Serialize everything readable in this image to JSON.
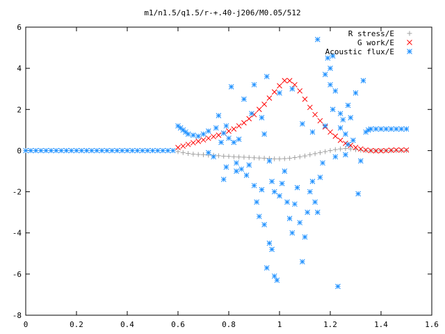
{
  "chart_data": {
    "type": "scatter",
    "title": "m1/n1.5/q1.5/r-+.40-j206/M0.05/512",
    "xlim": [
      0,
      1.6
    ],
    "ylim": [
      -8,
      6
    ],
    "xticks": [
      "0",
      "0.2",
      "0.4",
      "0.6",
      "0.8",
      "1",
      "1.2",
      "1.4",
      "1.6"
    ],
    "yticks": [
      "-8",
      "-6",
      "-4",
      "-2",
      "0",
      "2",
      "4",
      "6"
    ],
    "grid": false,
    "legend_position": "top-right",
    "series": [
      {
        "name": "R stress/E",
        "marker": "plus",
        "color": "#a0a0a0",
        "points": [
          [
            0.6,
            -0.05
          ],
          [
            0.62,
            -0.1
          ],
          [
            0.64,
            -0.14
          ],
          [
            0.66,
            -0.17
          ],
          [
            0.68,
            -0.19
          ],
          [
            0.7,
            -0.2
          ],
          [
            0.72,
            -0.22
          ],
          [
            0.74,
            -0.23
          ],
          [
            0.76,
            -0.25
          ],
          [
            0.78,
            -0.27
          ],
          [
            0.8,
            -0.28
          ],
          [
            0.82,
            -0.3
          ],
          [
            0.84,
            -0.31
          ],
          [
            0.86,
            -0.32
          ],
          [
            0.88,
            -0.33
          ],
          [
            0.9,
            -0.35
          ],
          [
            0.92,
            -0.36
          ],
          [
            0.94,
            -0.37
          ],
          [
            0.96,
            -0.38
          ],
          [
            0.98,
            -0.4
          ],
          [
            1.0,
            -0.4
          ],
          [
            1.02,
            -0.39
          ],
          [
            1.04,
            -0.37
          ],
          [
            1.06,
            -0.34
          ],
          [
            1.08,
            -0.3
          ],
          [
            1.1,
            -0.26
          ],
          [
            1.12,
            -0.2
          ],
          [
            1.14,
            -0.15
          ],
          [
            1.16,
            -0.1
          ],
          [
            1.18,
            -0.05
          ],
          [
            1.2,
            0.0
          ],
          [
            1.22,
            0.05
          ],
          [
            1.24,
            0.08
          ],
          [
            1.26,
            0.1
          ],
          [
            1.28,
            0.08
          ],
          [
            1.3,
            0.05
          ],
          [
            1.32,
            0.02
          ],
          [
            1.34,
            0.0
          ],
          [
            1.36,
            -0.01
          ],
          [
            1.38,
            -0.01
          ],
          [
            1.4,
            0.0
          ],
          [
            1.42,
            0.0
          ],
          [
            1.44,
            0.0
          ],
          [
            1.46,
            0.0
          ],
          [
            1.48,
            0.0
          ],
          [
            1.5,
            0.0
          ]
        ]
      },
      {
        "name": "G work/E",
        "marker": "cross",
        "color": "#ff0000",
        "points": [
          [
            0.6,
            0.15
          ],
          [
            0.62,
            0.22
          ],
          [
            0.64,
            0.3
          ],
          [
            0.66,
            0.38
          ],
          [
            0.68,
            0.45
          ],
          [
            0.7,
            0.52
          ],
          [
            0.72,
            0.6
          ],
          [
            0.74,
            0.68
          ],
          [
            0.76,
            0.75
          ],
          [
            0.78,
            0.85
          ],
          [
            0.8,
            0.95
          ],
          [
            0.82,
            1.05
          ],
          [
            0.84,
            1.2
          ],
          [
            0.86,
            1.35
          ],
          [
            0.88,
            1.55
          ],
          [
            0.9,
            1.75
          ],
          [
            0.92,
            2.0
          ],
          [
            0.94,
            2.25
          ],
          [
            0.96,
            2.55
          ],
          [
            0.98,
            2.85
          ],
          [
            1.0,
            3.15
          ],
          [
            1.02,
            3.4
          ],
          [
            1.04,
            3.4
          ],
          [
            1.06,
            3.2
          ],
          [
            1.08,
            2.9
          ],
          [
            1.1,
            2.5
          ],
          [
            1.12,
            2.1
          ],
          [
            1.14,
            1.75
          ],
          [
            1.16,
            1.45
          ],
          [
            1.18,
            1.15
          ],
          [
            1.2,
            0.9
          ],
          [
            1.22,
            0.7
          ],
          [
            1.24,
            0.5
          ],
          [
            1.26,
            0.35
          ],
          [
            1.28,
            0.25
          ],
          [
            1.3,
            0.15
          ],
          [
            1.32,
            0.08
          ],
          [
            1.34,
            0.03
          ],
          [
            1.36,
            0.0
          ],
          [
            1.38,
            -0.01
          ],
          [
            1.4,
            -0.01
          ],
          [
            1.42,
            0.0
          ],
          [
            1.44,
            0.02
          ],
          [
            1.46,
            0.03
          ],
          [
            1.48,
            0.03
          ],
          [
            1.5,
            0.03
          ]
        ]
      },
      {
        "name": "Acoustic flux/E",
        "marker": "star",
        "color": "#1e90ff",
        "points": [
          [
            0.0,
            0.0
          ],
          [
            0.02,
            0.0
          ],
          [
            0.04,
            0.0
          ],
          [
            0.06,
            0.0
          ],
          [
            0.08,
            0.0
          ],
          [
            0.1,
            0.0
          ],
          [
            0.12,
            0.0
          ],
          [
            0.14,
            0.0
          ],
          [
            0.16,
            0.0
          ],
          [
            0.18,
            0.0
          ],
          [
            0.2,
            0.0
          ],
          [
            0.22,
            0.0
          ],
          [
            0.24,
            0.0
          ],
          [
            0.26,
            0.0
          ],
          [
            0.28,
            0.0
          ],
          [
            0.3,
            0.0
          ],
          [
            0.32,
            0.0
          ],
          [
            0.34,
            0.0
          ],
          [
            0.36,
            0.0
          ],
          [
            0.38,
            0.0
          ],
          [
            0.4,
            0.0
          ],
          [
            0.42,
            0.0
          ],
          [
            0.44,
            0.0
          ],
          [
            0.46,
            0.0
          ],
          [
            0.48,
            0.0
          ],
          [
            0.5,
            0.0
          ],
          [
            0.52,
            0.0
          ],
          [
            0.54,
            0.0
          ],
          [
            0.56,
            0.0
          ],
          [
            0.58,
            0.0
          ],
          [
            0.6,
            1.2
          ],
          [
            0.61,
            1.1
          ],
          [
            0.62,
            1.0
          ],
          [
            0.63,
            0.9
          ],
          [
            0.64,
            0.8
          ],
          [
            0.66,
            0.75
          ],
          [
            0.68,
            0.7
          ],
          [
            0.7,
            0.8
          ],
          [
            0.72,
            0.95
          ],
          [
            0.75,
            1.1
          ],
          [
            0.78,
            0.85
          ],
          [
            0.79,
            1.2
          ],
          [
            0.72,
            -0.1
          ],
          [
            0.74,
            -0.3
          ],
          [
            0.76,
            1.7
          ],
          [
            0.77,
            0.4
          ],
          [
            0.8,
            0.6
          ],
          [
            0.82,
            0.4
          ],
          [
            0.84,
            0.55
          ],
          [
            0.83,
            -0.6
          ],
          [
            0.85,
            -0.9
          ],
          [
            0.87,
            -1.2
          ],
          [
            0.78,
            -1.4
          ],
          [
            0.79,
            -0.8
          ],
          [
            0.81,
            3.1
          ],
          [
            0.83,
            -1.0
          ],
          [
            0.88,
            -0.7
          ],
          [
            0.89,
            1.8
          ],
          [
            0.9,
            -1.7
          ],
          [
            0.91,
            -2.5
          ],
          [
            0.92,
            -3.2
          ],
          [
            0.93,
            -1.9
          ],
          [
            0.94,
            -3.6
          ],
          [
            0.95,
            -5.7
          ],
          [
            0.96,
            -4.5
          ],
          [
            0.97,
            -4.8
          ],
          [
            0.98,
            -6.1
          ],
          [
            0.99,
            -6.3
          ],
          [
            0.93,
            1.6
          ],
          [
            0.94,
            0.8
          ],
          [
            0.96,
            -0.5
          ],
          [
            0.97,
            -1.5
          ],
          [
            0.98,
            -2.0
          ],
          [
            1.0,
            -2.2
          ],
          [
            1.01,
            -1.6
          ],
          [
            1.02,
            -1.0
          ],
          [
            1.03,
            -2.5
          ],
          [
            1.04,
            -3.3
          ],
          [
            1.05,
            -4.0
          ],
          [
            1.06,
            -2.6
          ],
          [
            1.07,
            -1.8
          ],
          [
            1.08,
            -3.5
          ],
          [
            1.09,
            -5.4
          ],
          [
            1.1,
            -4.2
          ],
          [
            1.11,
            -3.0
          ],
          [
            1.12,
            -2.0
          ],
          [
            1.13,
            -1.5
          ],
          [
            1.14,
            -2.5
          ],
          [
            1.15,
            -3.0
          ],
          [
            1.16,
            -1.3
          ],
          [
            1.17,
            -0.6
          ],
          [
            1.18,
            1.2
          ],
          [
            1.19,
            4.5
          ],
          [
            1.2,
            3.2
          ],
          [
            1.21,
            2.0
          ],
          [
            1.22,
            -0.3
          ],
          [
            1.23,
            -6.6
          ],
          [
            1.24,
            1.8
          ],
          [
            1.25,
            1.5
          ],
          [
            1.26,
            0.8
          ],
          [
            1.27,
            0.3
          ],
          [
            1.28,
            1.6
          ],
          [
            1.29,
            0.5
          ],
          [
            1.3,
            2.8
          ],
          [
            1.31,
            -2.1
          ],
          [
            1.32,
            -0.5
          ],
          [
            1.33,
            3.4
          ],
          [
            1.34,
            0.9
          ],
          [
            1.35,
            1.0
          ],
          [
            1.36,
            1.05
          ],
          [
            1.38,
            1.05
          ],
          [
            1.4,
            1.05
          ],
          [
            1.42,
            1.05
          ],
          [
            1.44,
            1.05
          ],
          [
            1.46,
            1.05
          ],
          [
            1.48,
            1.05
          ],
          [
            1.5,
            1.05
          ],
          [
            1.15,
            5.4
          ],
          [
            1.2,
            4.0
          ],
          [
            0.86,
            2.5
          ],
          [
            0.9,
            3.2
          ],
          [
            1.0,
            2.8
          ],
          [
            1.05,
            3.0
          ],
          [
            1.27,
            2.2
          ],
          [
            0.95,
            3.6
          ],
          [
            1.09,
            1.3
          ],
          [
            1.13,
            0.9
          ],
          [
            1.18,
            3.7
          ],
          [
            1.21,
            4.6
          ],
          [
            1.22,
            2.9
          ],
          [
            1.24,
            1.1
          ],
          [
            1.26,
            -0.2
          ]
        ]
      }
    ]
  }
}
